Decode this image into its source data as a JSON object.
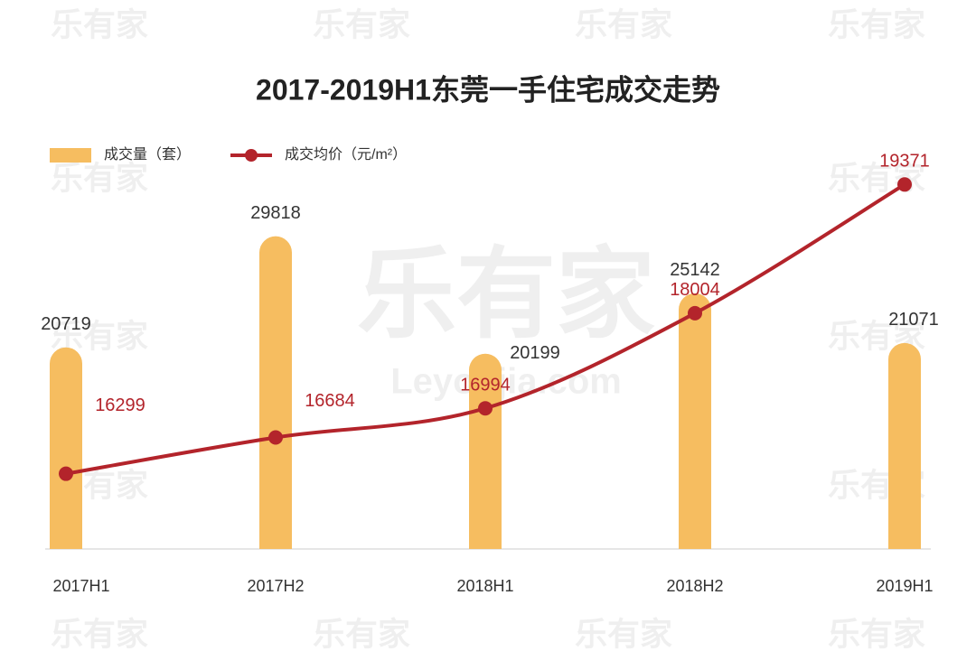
{
  "chart_data": {
    "type": "bar-line",
    "title": "2017-2019H1东莞一手住宅成交走势",
    "watermark": "乐有家",
    "watermark_url": "Leyoujia.com",
    "categories": [
      "2017H1",
      "2017H2",
      "2018H1",
      "2018H2",
      "2019H1"
    ],
    "series": [
      {
        "name": "成交量（套）",
        "type": "bar",
        "color": "#f6bd60",
        "values": [
          20719,
          29818,
          20199,
          25142,
          21071
        ]
      },
      {
        "name": "成交均价（元/m²）",
        "type": "line",
        "axis": "y2",
        "color": "#b3242b",
        "values": [
          16299,
          16684,
          16994,
          18004,
          19371
        ]
      }
    ],
    "ylim": [
      4200,
      36600
    ],
    "y2lim": [
      15500,
      19700
    ],
    "grid": false
  }
}
